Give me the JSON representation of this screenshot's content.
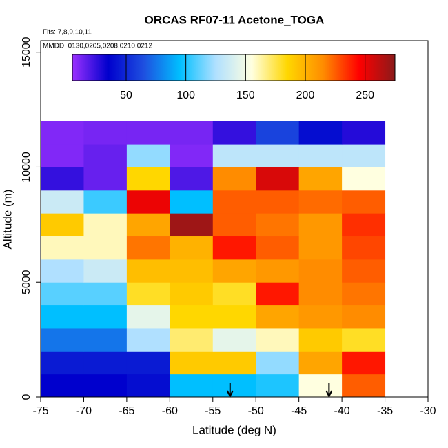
{
  "chart_data": {
    "type": "heatmap",
    "title": "ORCAS RF07-11 Acetone_TOGA",
    "annotations": [
      "Flts: 7,8,9,10,11",
      "MMDD: 0130,0205,0208,0210,0212"
    ],
    "x_label": "Latitude (deg N)",
    "y_label": "Altitude (m)",
    "x_bins": [
      -75,
      -70,
      -65,
      -60,
      -55,
      -50,
      -45,
      -40,
      -35
    ],
    "y_bins": [
      0,
      1000,
      2000,
      3000,
      4000,
      5000,
      6000,
      7000,
      8000,
      9000,
      10000,
      11000,
      12000
    ],
    "z": [
      [
        35,
        35,
        40,
        95,
        95,
        100,
        155,
        225
      ],
      [
        45,
        45,
        45,
        190,
        190,
        120,
        205,
        240
      ],
      [
        75,
        75,
        125,
        170,
        145,
        160,
        190,
        180
      ],
      [
        95,
        95,
        145,
        185,
        185,
        205,
        210,
        215
      ],
      [
        110,
        110,
        180,
        190,
        180,
        240,
        215,
        220
      ],
      [
        125,
        135,
        195,
        195,
        205,
        210,
        215,
        225
      ],
      [
        160,
        160,
        220,
        200,
        240,
        225,
        210,
        230
      ],
      [
        190,
        160,
        205,
        270,
        225,
        220,
        210,
        235
      ],
      [
        135,
        105,
        250,
        95,
        225,
        225,
        222,
        225
      ],
      [
        25,
        15,
        185,
        20,
        215,
        255,
        205,
        155
      ],
      [
        10,
        15,
        120,
        10,
        130,
        130,
        130,
        130
      ],
      [
        10,
        12,
        12,
        12,
        25,
        60,
        40,
        28
      ]
    ],
    "zlim": [
      5,
      275
    ],
    "zticks": [
      50,
      100,
      150,
      200,
      250
    ],
    "colorscale": [
      "#9b30ff",
      "#0000cd",
      "#1e50e0",
      "#00bfff",
      "#b0e0ff",
      "#ffffe0",
      "#ffd700",
      "#ff8c00",
      "#ff0000",
      "#8b1a1a"
    ],
    "arrows_x": [
      -53,
      -41.5
    ],
    "xlim": [
      -75,
      -30
    ],
    "xticks": [
      -75,
      -70,
      -65,
      -60,
      -55,
      -50,
      -45,
      -40,
      -35,
      -30
    ],
    "ylim": [
      0,
      15500
    ],
    "yticks": [
      0,
      5000,
      10000,
      15000
    ]
  }
}
